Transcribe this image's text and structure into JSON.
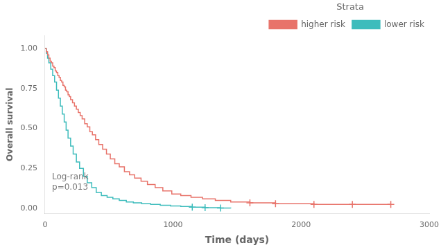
{
  "chart_data": {
    "type": "step",
    "xlabel": "Time (days)",
    "ylabel": "Overall survival",
    "xlim": [
      0,
      3000
    ],
    "ylim": [
      -0.03,
      1.08
    ],
    "xticks": [
      0,
      1000,
      2000,
      3000
    ],
    "yticks": [
      {
        "value": 0.0,
        "label": "0.00"
      },
      {
        "value": 0.25,
        "label": "0.25"
      },
      {
        "value": 0.5,
        "label": "0.50"
      },
      {
        "value": 0.75,
        "label": "0.75"
      },
      {
        "value": 1.0,
        "label": "1.00"
      }
    ],
    "grid": false,
    "legend": "upper-right",
    "legend_title": "Strata",
    "annotations": [
      {
        "text": "Log-rank\np=0.013",
        "x": 55,
        "y": 0.22
      }
    ],
    "series": [
      {
        "name": "higher risk",
        "color": "#E8736A",
        "marker": "plus",
        "x": [
          0,
          10,
          20,
          30,
          40,
          50,
          60,
          70,
          80,
          90,
          100,
          110,
          120,
          130,
          140,
          150,
          160,
          170,
          180,
          190,
          200,
          215,
          230,
          245,
          260,
          275,
          290,
          310,
          330,
          350,
          370,
          395,
          420,
          450,
          480,
          510,
          545,
          580,
          620,
          660,
          700,
          750,
          800,
          860,
          920,
          990,
          1060,
          1140,
          1230,
          1330,
          1450,
          1600,
          1800,
          2100,
          2400,
          2700
        ],
        "values": [
          1.0,
          0.98,
          0.96,
          0.94,
          0.92,
          0.91,
          0.89,
          0.88,
          0.86,
          0.85,
          0.83,
          0.82,
          0.8,
          0.79,
          0.77,
          0.76,
          0.74,
          0.73,
          0.71,
          0.7,
          0.68,
          0.66,
          0.64,
          0.62,
          0.6,
          0.58,
          0.56,
          0.53,
          0.51,
          0.48,
          0.46,
          0.43,
          0.4,
          0.37,
          0.34,
          0.31,
          0.28,
          0.26,
          0.23,
          0.21,
          0.19,
          0.17,
          0.15,
          0.13,
          0.11,
          0.09,
          0.08,
          0.07,
          0.06,
          0.05,
          0.04,
          0.035,
          0.03,
          0.025,
          0.025,
          0.025
        ],
        "censor_x": [
          1600,
          1800,
          2100,
          2400,
          2700
        ],
        "censor_values": [
          0.035,
          0.03,
          0.025,
          0.025,
          0.025
        ]
      },
      {
        "name": "lower risk",
        "color": "#3DBCBC",
        "marker": "plus",
        "x": [
          0,
          10,
          20,
          30,
          45,
          60,
          75,
          90,
          105,
          120,
          135,
          150,
          165,
          180,
          200,
          220,
          245,
          270,
          300,
          330,
          365,
          400,
          440,
          485,
          530,
          580,
          635,
          690,
          755,
          825,
          900,
          980,
          1060,
          1150,
          1250,
          1370,
          1450
        ],
        "values": [
          1.0,
          0.97,
          0.94,
          0.91,
          0.87,
          0.83,
          0.79,
          0.74,
          0.69,
          0.64,
          0.59,
          0.54,
          0.49,
          0.44,
          0.39,
          0.34,
          0.29,
          0.25,
          0.2,
          0.16,
          0.13,
          0.1,
          0.08,
          0.07,
          0.06,
          0.05,
          0.04,
          0.035,
          0.03,
          0.025,
          0.02,
          0.015,
          0.012,
          0.008,
          0.005,
          0.002,
          0.0
        ],
        "censor_x": [
          1150,
          1250,
          1370
        ],
        "censor_values": [
          0.008,
          0.005,
          0.002
        ]
      }
    ]
  }
}
